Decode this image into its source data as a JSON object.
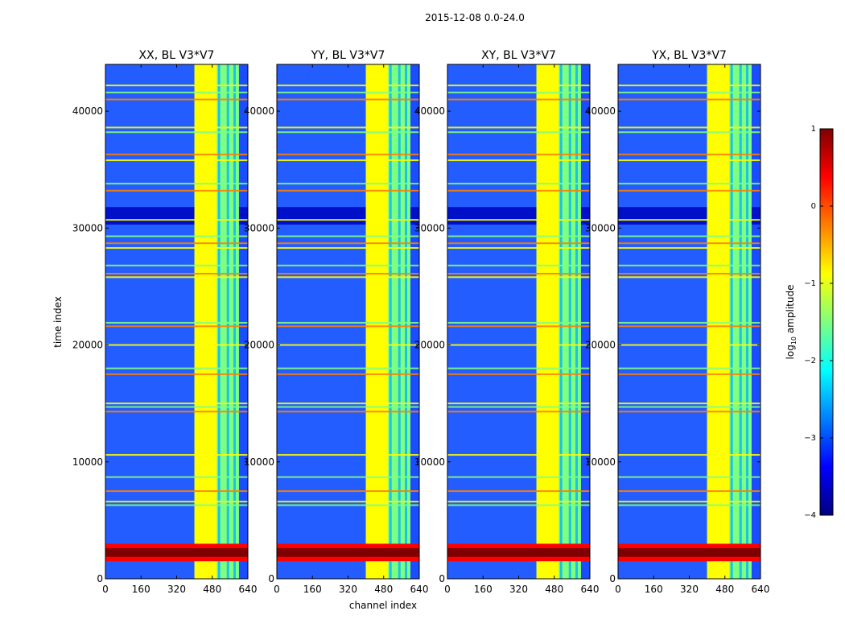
{
  "figure": {
    "suptitle": "2015-12-08 0.0-24.0"
  },
  "chart_data": {
    "type": "heatmap",
    "panels": [
      {
        "title": "XX, BL V3*V7",
        "key": "xx"
      },
      {
        "title": "YY, BL V3*V7",
        "key": "yy"
      },
      {
        "title": "XY, BL V3*V7",
        "key": "xy"
      },
      {
        "title": "YX, BL V3*V7",
        "key": "yx"
      }
    ],
    "xlabel": "channel index",
    "ylabel": "time index",
    "xlim": [
      0,
      640
    ],
    "ylim": [
      0,
      44000
    ],
    "x_ticks": [
      0,
      160,
      320,
      480,
      640
    ],
    "x_tick_labels": [
      "0",
      "160",
      "320",
      "480",
      "640"
    ],
    "y_ticks": [
      0,
      10000,
      20000,
      30000,
      40000
    ],
    "y_tick_labels": [
      "0",
      "10000",
      "20000",
      "30000",
      "40000"
    ],
    "colorbar": {
      "label": "log",
      "label_sub": "10",
      "label_suffix": " amplitude",
      "range": [
        -4,
        1
      ],
      "ticks": [
        1,
        0,
        -1,
        -2,
        -3,
        -4
      ],
      "tick_labels": [
        "1",
        "0",
        "−1",
        "−2",
        "−3",
        "−4"
      ],
      "colormap": "jet",
      "colors": [
        "#00007f",
        "#0000ff",
        "#007fff",
        "#00ffff",
        "#7fff7f",
        "#ffff00",
        "#ff7f00",
        "#ff0000",
        "#7f0000"
      ]
    },
    "features": {
      "bright_channel_band": [
        400,
        600
      ],
      "saturated_channel_band": [
        400,
        500
      ],
      "strong_time_band": [
        1500,
        3000
      ],
      "quiet_time_band": [
        30300,
        31800
      ],
      "rfi_rows_time_index": [
        2300,
        6300,
        6600,
        7500,
        8700,
        10600,
        14300,
        14700,
        15000,
        17500,
        18000,
        20000,
        21600,
        21900,
        25800,
        26100,
        26800,
        28300,
        28700,
        29300,
        30700,
        33200,
        33800,
        35800,
        36300,
        38200,
        38600,
        41000,
        41600,
        42200
      ]
    }
  }
}
